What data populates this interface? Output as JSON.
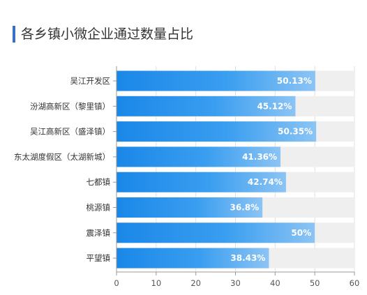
{
  "chart_data": {
    "type": "bar",
    "orientation": "horizontal",
    "title": "各乡镇小微企业通过数量占比",
    "categories": [
      "吴江开发区",
      "汾湖高新区（黎里镇）",
      "吴江高新区（盛泽镇）",
      "东太湖度假区（太湖新城）",
      "七都镇",
      "桃源镇",
      "震泽镇",
      "平望镇"
    ],
    "values": [
      50.13,
      45.12,
      50.35,
      41.36,
      42.74,
      36.8,
      50,
      38.43
    ],
    "value_labels": [
      "50.13%",
      "45.12%",
      "50.35%",
      "41.36%",
      "42.74%",
      "36.8%",
      "50%",
      "38.43%"
    ],
    "xlim": [
      0,
      60
    ],
    "xticks": [
      "0",
      "10",
      "20",
      "30",
      "40",
      "50",
      "60"
    ],
    "xlabel": "",
    "ylabel": "",
    "grid": true,
    "colors": {
      "bar_start": "#1a87e8",
      "bar_end": "#8cc4f4",
      "track": "#efefef",
      "label": "#ffffff",
      "accent": "#3a6fc4"
    }
  }
}
